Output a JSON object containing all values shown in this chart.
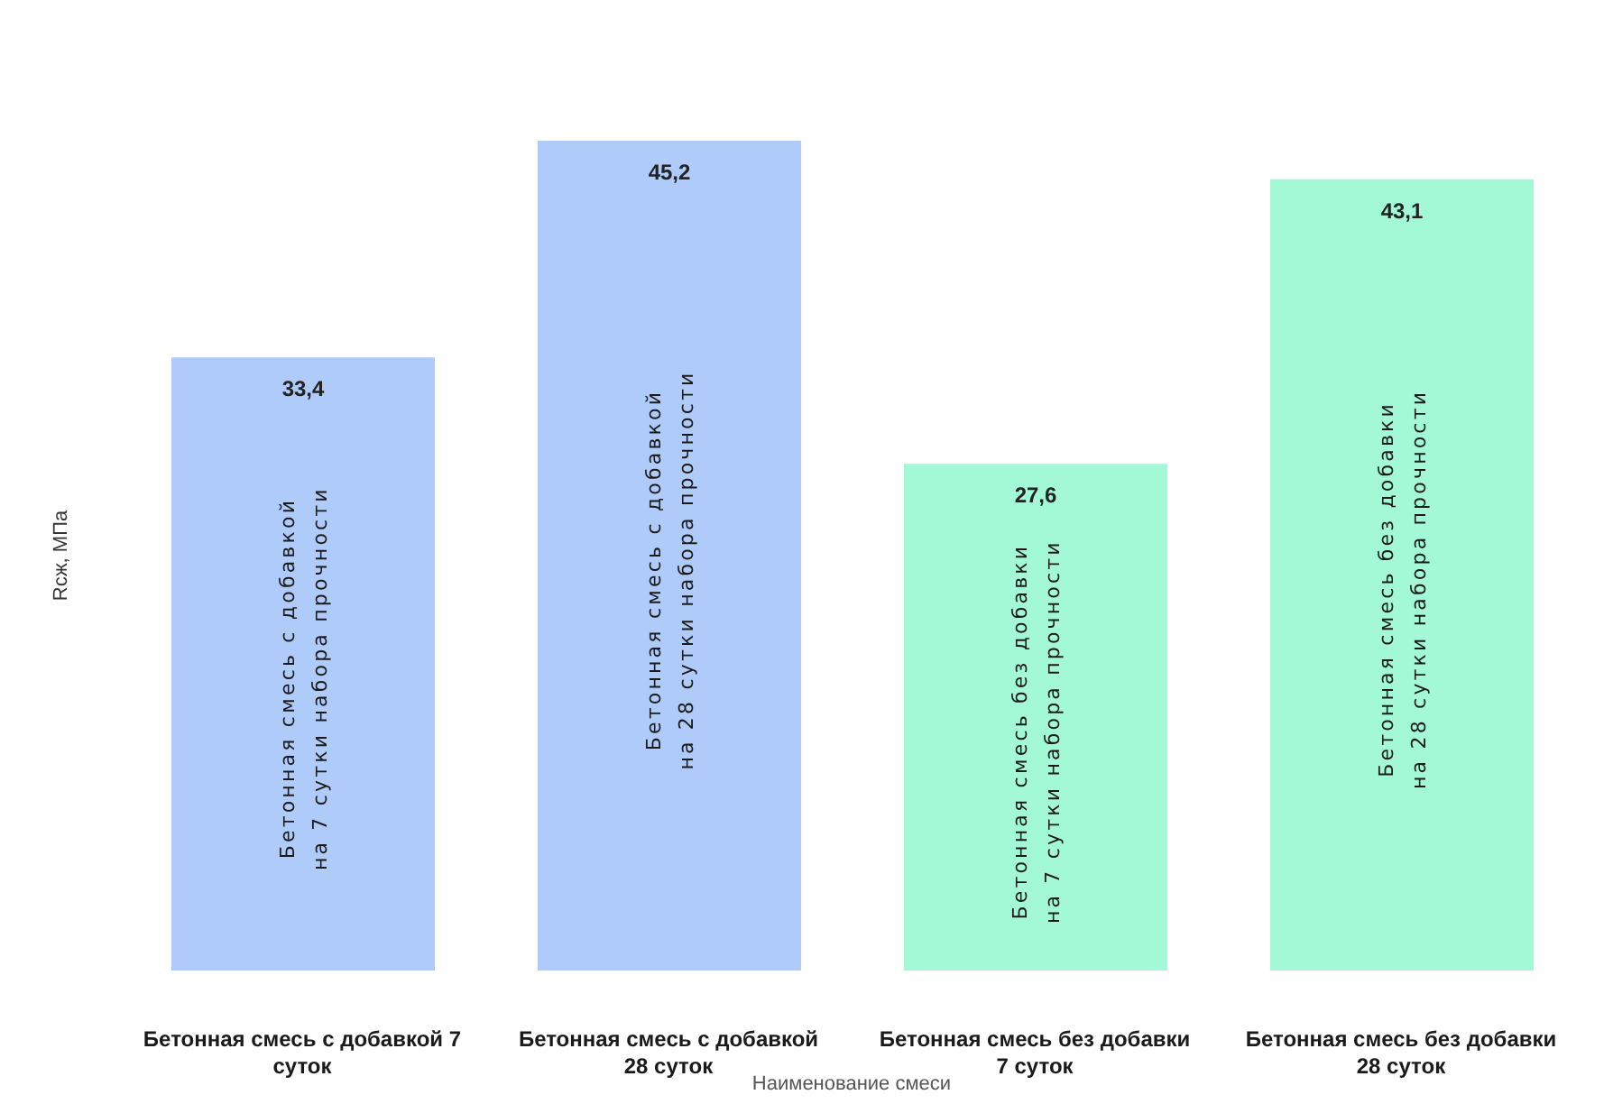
{
  "chart_data": {
    "type": "bar",
    "xlabel": "Наименование смеси",
    "ylabel": "Rсж, МПа",
    "categories": [
      "Бетонная смесь с добавкой 7 суток",
      "Бетонная смесь с добавкой 28 суток",
      "Бетонная смесь без добавки 7 суток",
      "Бетонная смесь без добавки 28 суток"
    ],
    "values": [
      33.4,
      45.2,
      27.6,
      43.1
    ],
    "value_labels": [
      "33,4",
      "45,2",
      "27,6",
      "43,1"
    ],
    "colors": [
      "#afcbf9",
      "#afcbf9",
      "#a3f8d6",
      "#a3f8d6"
    ],
    "annotations": [
      "Бетонная смесь с добавкой\nна 7 сутки набора прочности",
      "Бетонная смесь с добавкой\nна 28 сутки набора прочности",
      "Бетонная смесь без добавки\nна 7 сутки набора прочности",
      "Бетонная смесь без добавки\nна 28 сутки набора прочности"
    ]
  }
}
